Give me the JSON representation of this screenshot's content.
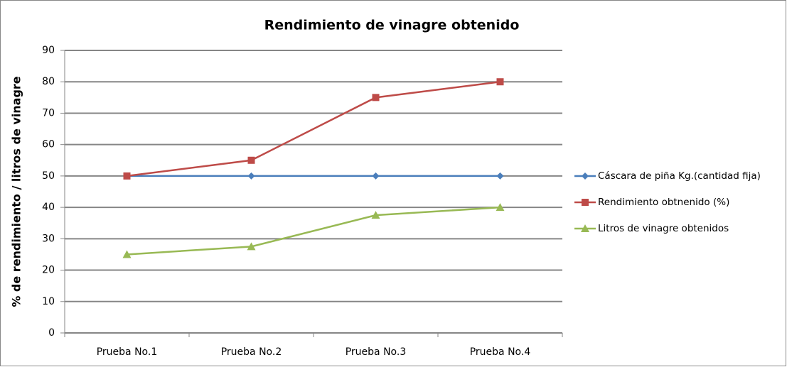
{
  "chart_data": {
    "type": "line",
    "title": "Rendimiento de vinagre obtenido",
    "y_label": "% de rendimiento / litros de vinagre",
    "categories": [
      "Prueba No.1",
      "Prueba No.2",
      "Prueba No.3",
      "Prueba No.4"
    ],
    "series": [
      {
        "name": "Cáscara de piña Kg.(cantidad fija)",
        "color": "#4a7ebb",
        "marker": "diamond",
        "values": [
          50,
          50,
          50,
          50
        ]
      },
      {
        "name": "Rendimiento obtnenido (%)",
        "color": "#be4b48",
        "marker": "square",
        "values": [
          50,
          55,
          75,
          80
        ]
      },
      {
        "name": "Litros de vinagre obtenidos",
        "color": "#98b954",
        "marker": "triangle",
        "values": [
          25,
          27.5,
          37.5,
          40
        ]
      }
    ],
    "ylim": [
      0,
      90
    ],
    "yticks": [
      0,
      10,
      20,
      30,
      40,
      50,
      60,
      70,
      80,
      90
    ],
    "grid": true,
    "legend": "right"
  }
}
